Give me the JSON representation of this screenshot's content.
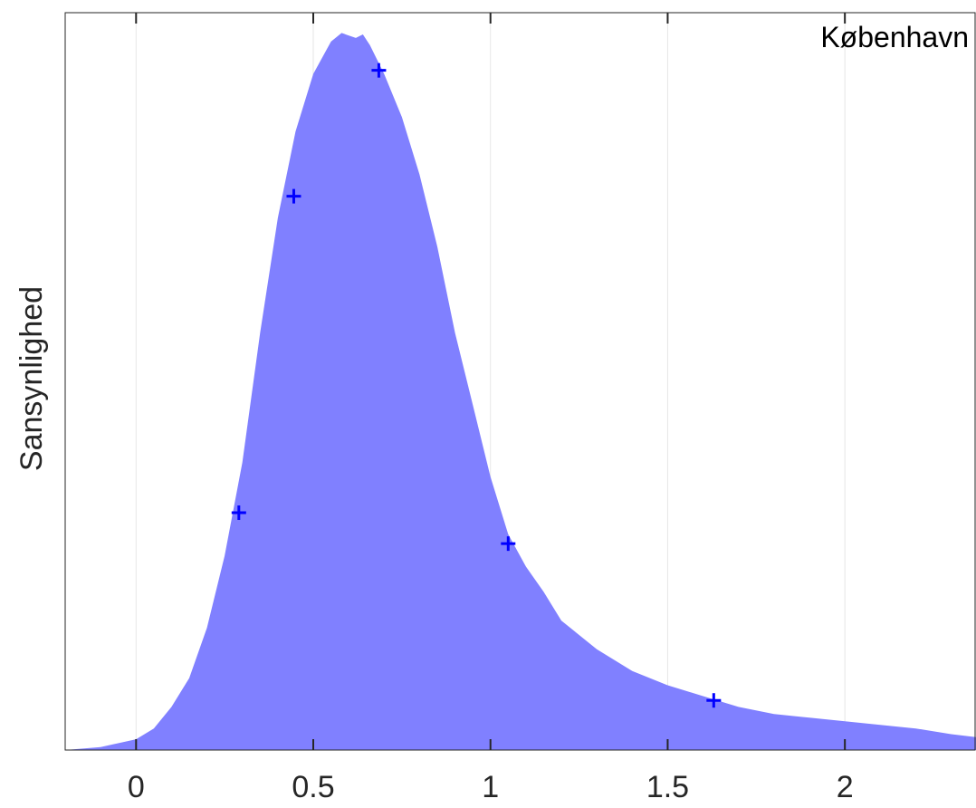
{
  "chart_data": {
    "type": "area",
    "title": "",
    "xlabel": "",
    "ylabel": "Sansynlighed",
    "annotation": "København",
    "xlim": [
      -0.2,
      2.37
    ],
    "ylim": [
      0,
      1.0
    ],
    "x_ticks": [
      0,
      0.5,
      1,
      1.5,
      2
    ],
    "x_tick_labels": [
      "0",
      "0.5",
      "1",
      "1.5",
      "2"
    ],
    "y_ticks_shown": false,
    "grid": "vertical",
    "fill_color": "#8080ff",
    "marker_color": "#0000ff",
    "series": [
      {
        "x": [
          -0.2,
          -0.1,
          0,
          0.05,
          0.1,
          0.15,
          0.2,
          0.25,
          0.3,
          0.35,
          0.4,
          0.45,
          0.5,
          0.55,
          0.58,
          0.62,
          0.64,
          0.66,
          0.7,
          0.75,
          0.8,
          0.85,
          0.9,
          0.95,
          1.0,
          1.05,
          1.1,
          1.15,
          1.2,
          1.3,
          1.4,
          1.5,
          1.6,
          1.7,
          1.8,
          1.9,
          2.0,
          2.1,
          2.2,
          2.3,
          2.37
        ],
        "values": [
          0.0,
          0.004,
          0.015,
          0.03,
          0.06,
          0.1,
          0.17,
          0.27,
          0.4,
          0.58,
          0.74,
          0.86,
          0.94,
          0.985,
          0.997,
          0.99,
          0.995,
          0.98,
          0.94,
          0.88,
          0.8,
          0.7,
          0.58,
          0.48,
          0.38,
          0.3,
          0.255,
          0.22,
          0.18,
          0.14,
          0.11,
          0.09,
          0.075,
          0.06,
          0.05,
          0.045,
          0.04,
          0.035,
          0.03,
          0.022,
          0.018
        ]
      }
    ],
    "markers": {
      "x": [
        0.29,
        0.445,
        0.685,
        1.05,
        1.63
      ],
      "y": [
        0.33,
        0.77,
        0.945,
        0.287,
        0.069
      ]
    }
  }
}
